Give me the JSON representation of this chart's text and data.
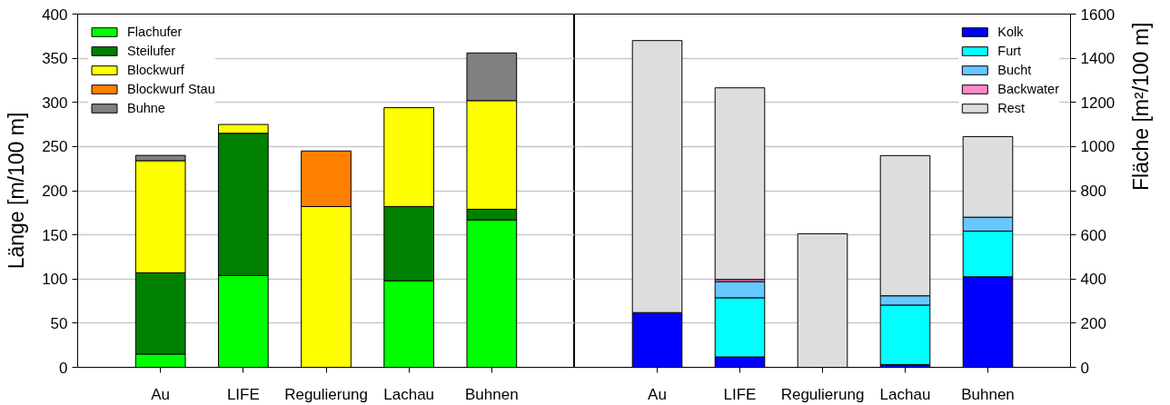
{
  "chart_data": [
    {
      "type": "bar",
      "stacked": true,
      "ylabel": "Länge [m/100 m]",
      "categories": [
        "Au",
        "LIFE",
        "Regulierung",
        "Lachau",
        "Buhnen"
      ],
      "ylim": [
        0,
        400
      ],
      "yticks": [
        0,
        50,
        100,
        150,
        200,
        250,
        300,
        350,
        400
      ],
      "grid": "y",
      "legend": "top left",
      "series": [
        {
          "name": "Flachufer",
          "color": "#00ff00",
          "values": [
            15,
            104,
            null,
            98,
            167
          ]
        },
        {
          "name": "Steilufer",
          "color": "#008000",
          "values": [
            92,
            161,
            null,
            84,
            12
          ]
        },
        {
          "name": "Blockwurf",
          "color": "#ffff00",
          "values": [
            127,
            10,
            182,
            112,
            123
          ]
        },
        {
          "name": "Blockwurf Stau",
          "color": "#ff8000",
          "values": [
            null,
            null,
            63,
            null,
            null
          ]
        },
        {
          "name": "Buhne",
          "color": "#808080",
          "values": [
            6,
            null,
            null,
            null,
            54
          ]
        }
      ]
    },
    {
      "type": "bar",
      "stacked": true,
      "y2label": "Fläche [m²/100 m]",
      "categories": [
        "Au",
        "LIFE",
        "Regulierung",
        "Lachau",
        "Buhnen"
      ],
      "y2lim": [
        0,
        1600
      ],
      "y2ticks": [
        0,
        200,
        400,
        600,
        800,
        1000,
        1200,
        1400,
        1600
      ],
      "grid": "y",
      "legend": "top right",
      "series": [
        {
          "name": "Kolk",
          "color": "#0000ff",
          "axis": "y2",
          "values": [
            248,
            47,
            null,
            12,
            410
          ]
        },
        {
          "name": "Furt",
          "color": "#00ffff",
          "axis": "y2",
          "values": [
            null,
            268,
            null,
            270,
            207
          ]
        },
        {
          "name": "Bucht",
          "color": "#66c8ff",
          "axis": "y2",
          "values": [
            null,
            73,
            null,
            42,
            63
          ]
        },
        {
          "name": "Backwater",
          "color": "#ff88c8",
          "axis": "y2",
          "values": [
            null,
            10,
            null,
            null,
            null
          ]
        },
        {
          "name": "Rest",
          "color": "#dddddd",
          "axis": "y2",
          "values": [
            1232,
            868,
            605,
            635,
            365
          ]
        }
      ]
    }
  ]
}
